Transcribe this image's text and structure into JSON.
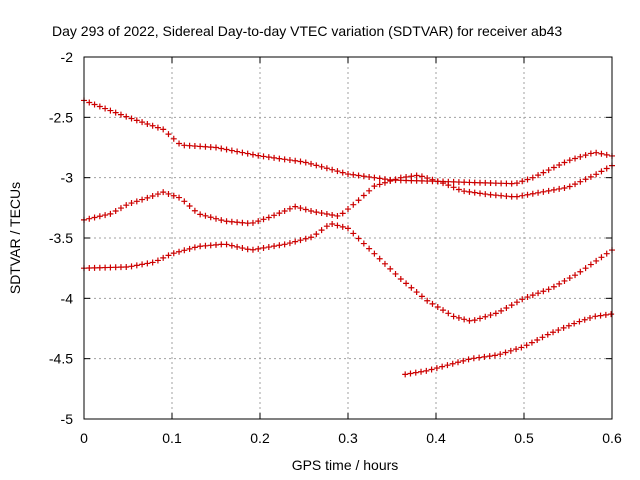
{
  "chart_data": {
    "type": "scatter",
    "title": "Day 293 of 2022, Sidereal Day-to-day VTEC variation (SDTVAR) for receiver ab43",
    "xlabel": "GPS time / hours",
    "ylabel": "SDTVAR / TECUs",
    "xlim": [
      0,
      0.6
    ],
    "ylim": [
      -5,
      -2
    ],
    "xticks": [
      0,
      0.1,
      0.2,
      0.3,
      0.4,
      0.5,
      0.6
    ],
    "xtick_labels": [
      "0",
      "0.1",
      "0.2",
      "0.3",
      "0.4",
      "0.5",
      "0.6"
    ],
    "yticks": [
      -5,
      -4.5,
      -4,
      -3.5,
      -3,
      -2.5,
      -2
    ],
    "ytick_labels": [
      "-5",
      "-4.5",
      "-4",
      "-3.5",
      "-3",
      "-2.5",
      "-2"
    ],
    "grid": true,
    "marker": "+",
    "marker_color": "#cc0000",
    "series": [
      {
        "name": "series-1",
        "knots": [
          [
            0,
            -2.36
          ],
          [
            0.05,
            -2.5
          ],
          [
            0.09,
            -2.6
          ],
          [
            0.11,
            -2.73
          ],
          [
            0.15,
            -2.75
          ],
          [
            0.2,
            -2.82
          ],
          [
            0.25,
            -2.87
          ],
          [
            0.3,
            -2.97
          ],
          [
            0.35,
            -3.02
          ],
          [
            0.4,
            -3.03
          ],
          [
            0.44,
            -3.04
          ],
          [
            0.49,
            -3.05
          ],
          [
            0.51,
            -3.0
          ],
          [
            0.55,
            -2.86
          ],
          [
            0.58,
            -2.79
          ],
          [
            0.6,
            -2.82
          ]
        ]
      },
      {
        "name": "series-2",
        "knots": [
          [
            0,
            -3.35
          ],
          [
            0.03,
            -3.3
          ],
          [
            0.05,
            -3.22
          ],
          [
            0.075,
            -3.16
          ],
          [
            0.09,
            -3.12
          ],
          [
            0.11,
            -3.17
          ],
          [
            0.13,
            -3.3
          ],
          [
            0.16,
            -3.36
          ],
          [
            0.19,
            -3.38
          ],
          [
            0.21,
            -3.33
          ],
          [
            0.24,
            -3.24
          ],
          [
            0.26,
            -3.28
          ],
          [
            0.29,
            -3.32
          ],
          [
            0.31,
            -3.2
          ],
          [
            0.33,
            -3.07
          ],
          [
            0.36,
            -3.0
          ],
          [
            0.38,
            -2.98
          ],
          [
            0.41,
            -3.05
          ],
          [
            0.43,
            -3.11
          ],
          [
            0.46,
            -3.14
          ],
          [
            0.49,
            -3.16
          ],
          [
            0.52,
            -3.12
          ],
          [
            0.55,
            -3.08
          ],
          [
            0.58,
            -2.98
          ],
          [
            0.6,
            -2.9
          ]
        ]
      },
      {
        "name": "series-3",
        "knots": [
          [
            0,
            -3.75
          ],
          [
            0.05,
            -3.74
          ],
          [
            0.08,
            -3.7
          ],
          [
            0.1,
            -3.63
          ],
          [
            0.13,
            -3.57
          ],
          [
            0.16,
            -3.55
          ],
          [
            0.19,
            -3.6
          ],
          [
            0.23,
            -3.55
          ],
          [
            0.26,
            -3.49
          ],
          [
            0.28,
            -3.38
          ],
          [
            0.3,
            -3.42
          ],
          [
            0.33,
            -3.63
          ],
          [
            0.36,
            -3.84
          ],
          [
            0.39,
            -4.02
          ],
          [
            0.42,
            -4.15
          ],
          [
            0.44,
            -4.19
          ],
          [
            0.47,
            -4.12
          ],
          [
            0.5,
            -4.0
          ],
          [
            0.53,
            -3.92
          ],
          [
            0.56,
            -3.8
          ],
          [
            0.58,
            -3.7
          ],
          [
            0.6,
            -3.6
          ]
        ]
      },
      {
        "name": "series-4",
        "knots": [
          [
            0.365,
            -4.63
          ],
          [
            0.39,
            -4.6
          ],
          [
            0.42,
            -4.54
          ],
          [
            0.44,
            -4.5
          ],
          [
            0.47,
            -4.47
          ],
          [
            0.5,
            -4.4
          ],
          [
            0.53,
            -4.29
          ],
          [
            0.56,
            -4.2
          ],
          [
            0.58,
            -4.15
          ],
          [
            0.6,
            -4.13
          ]
        ]
      }
    ]
  }
}
